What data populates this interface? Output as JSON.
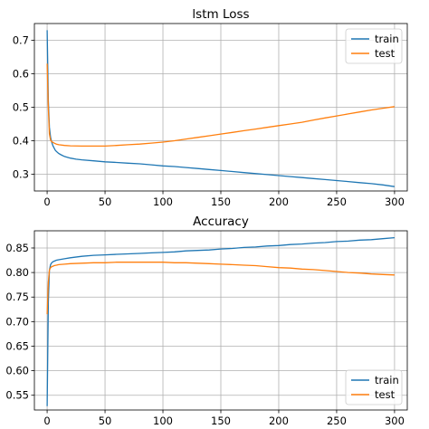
{
  "chart_data": [
    {
      "type": "line",
      "title": "lstm Loss",
      "xlabel": "",
      "ylabel": "",
      "xlim": [
        -11,
        311
      ],
      "ylim": [
        0.25,
        0.75
      ],
      "xticks": [
        0,
        50,
        100,
        150,
        200,
        250,
        300
      ],
      "yticks": [
        0.3,
        0.4,
        0.5,
        0.6,
        0.7
      ],
      "ytick_labels": [
        "0.3",
        "0.4",
        "0.5",
        "0.6",
        "0.7"
      ],
      "grid": true,
      "legend_position": "upper right",
      "series": [
        {
          "name": "train",
          "color": "#1f77b4",
          "x": [
            0,
            1,
            2,
            3,
            4,
            5,
            6,
            7,
            8,
            10,
            12,
            15,
            20,
            25,
            30,
            40,
            50,
            60,
            70,
            80,
            90,
            100,
            110,
            120,
            130,
            140,
            150,
            160,
            170,
            180,
            190,
            200,
            210,
            220,
            230,
            240,
            250,
            260,
            270,
            280,
            290,
            300
          ],
          "y": [
            0.73,
            0.52,
            0.44,
            0.41,
            0.395,
            0.385,
            0.378,
            0.372,
            0.368,
            0.362,
            0.358,
            0.353,
            0.348,
            0.345,
            0.343,
            0.34,
            0.337,
            0.335,
            0.333,
            0.331,
            0.328,
            0.325,
            0.323,
            0.32,
            0.317,
            0.314,
            0.311,
            0.308,
            0.305,
            0.302,
            0.299,
            0.296,
            0.293,
            0.29,
            0.287,
            0.284,
            0.281,
            0.278,
            0.275,
            0.272,
            0.268,
            0.263
          ]
        },
        {
          "name": "test",
          "color": "#ff7f0e",
          "x": [
            0,
            1,
            2,
            3,
            4,
            5,
            6,
            8,
            10,
            15,
            20,
            30,
            40,
            50,
            60,
            70,
            80,
            90,
            100,
            110,
            120,
            130,
            140,
            150,
            160,
            170,
            180,
            190,
            200,
            210,
            220,
            230,
            240,
            250,
            260,
            270,
            280,
            290,
            300
          ],
          "y": [
            0.63,
            0.5,
            0.42,
            0.402,
            0.397,
            0.395,
            0.393,
            0.39,
            0.388,
            0.386,
            0.385,
            0.384,
            0.384,
            0.384,
            0.386,
            0.388,
            0.39,
            0.393,
            0.396,
            0.4,
            0.405,
            0.41,
            0.415,
            0.42,
            0.425,
            0.43,
            0.435,
            0.44,
            0.445,
            0.45,
            0.455,
            0.462,
            0.468,
            0.474,
            0.48,
            0.486,
            0.492,
            0.497,
            0.502
          ]
        }
      ]
    },
    {
      "type": "line",
      "title": "Accuracy",
      "xlabel": "",
      "ylabel": "",
      "xlim": [
        -11,
        311
      ],
      "ylim": [
        0.52,
        0.885
      ],
      "xticks": [
        0,
        50,
        100,
        150,
        200,
        250,
        300
      ],
      "yticks": [
        0.55,
        0.6,
        0.65,
        0.7,
        0.75,
        0.8,
        0.85
      ],
      "ytick_labels": [
        "0.55",
        "0.60",
        "0.65",
        "0.70",
        "0.75",
        "0.80",
        "0.85"
      ],
      "grid": true,
      "legend_position": "lower right",
      "series": [
        {
          "name": "train",
          "color": "#1f77b4",
          "x": [
            0,
            1,
            2,
            3,
            4,
            5,
            6,
            8,
            10,
            15,
            20,
            30,
            40,
            50,
            60,
            70,
            80,
            90,
            100,
            110,
            120,
            130,
            140,
            150,
            160,
            170,
            180,
            190,
            200,
            210,
            220,
            230,
            240,
            250,
            260,
            270,
            280,
            290,
            300
          ],
          "y": [
            0.528,
            0.74,
            0.805,
            0.816,
            0.82,
            0.822,
            0.823,
            0.825,
            0.826,
            0.828,
            0.83,
            0.833,
            0.835,
            0.836,
            0.837,
            0.838,
            0.839,
            0.84,
            0.841,
            0.842,
            0.844,
            0.845,
            0.846,
            0.848,
            0.849,
            0.851,
            0.852,
            0.854,
            0.855,
            0.857,
            0.858,
            0.86,
            0.861,
            0.863,
            0.864,
            0.866,
            0.867,
            0.869,
            0.871
          ]
        },
        {
          "name": "test",
          "color": "#ff7f0e",
          "x": [
            0,
            1,
            2,
            3,
            4,
            5,
            6,
            8,
            10,
            15,
            20,
            30,
            40,
            50,
            60,
            70,
            80,
            90,
            100,
            110,
            120,
            130,
            140,
            150,
            160,
            170,
            180,
            190,
            200,
            210,
            220,
            230,
            240,
            250,
            260,
            270,
            280,
            290,
            300
          ],
          "y": [
            0.715,
            0.78,
            0.805,
            0.81,
            0.812,
            0.813,
            0.814,
            0.815,
            0.816,
            0.817,
            0.818,
            0.819,
            0.82,
            0.82,
            0.821,
            0.821,
            0.821,
            0.821,
            0.821,
            0.82,
            0.82,
            0.819,
            0.818,
            0.817,
            0.816,
            0.815,
            0.814,
            0.812,
            0.81,
            0.809,
            0.807,
            0.806,
            0.804,
            0.802,
            0.8,
            0.799,
            0.797,
            0.796,
            0.795
          ]
        }
      ]
    }
  ]
}
